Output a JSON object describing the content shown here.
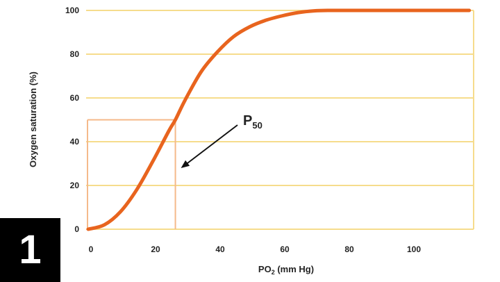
{
  "panel_number": "1",
  "colors": {
    "grid": "#f6dc8c",
    "curve": "#e8641e",
    "p50_box": "#f5b98a",
    "text": "#222222"
  },
  "chart_data": {
    "type": "line",
    "title": "",
    "xlabel": "PO",
    "xlabel_sub": "2",
    "xlabel_suffix": " (mm Hg)",
    "ylabel": "Oxygen saturation (%)",
    "xlim": [
      0,
      120
    ],
    "ylim": [
      0,
      100
    ],
    "x_ticks": [
      0,
      20,
      40,
      60,
      80,
      100
    ],
    "y_ticks": [
      0,
      20,
      40,
      60,
      80,
      100
    ],
    "grid": "horizontal",
    "series": [
      {
        "x": [
          0,
          5,
          10,
          15,
          20,
          25,
          27,
          30,
          35,
          40,
          45,
          50,
          55,
          60,
          65,
          70,
          75,
          80,
          90,
          100,
          110,
          118
        ],
        "y": [
          0,
          2,
          8,
          18,
          31,
          45,
          50,
          59,
          72,
          81,
          88,
          92.5,
          95.5,
          97.5,
          99,
          99.8,
          100,
          100,
          100,
          100,
          100,
          100
        ]
      }
    ],
    "annotation": {
      "label": "P",
      "label_sub": "50",
      "x": 27,
      "y": 50
    }
  }
}
